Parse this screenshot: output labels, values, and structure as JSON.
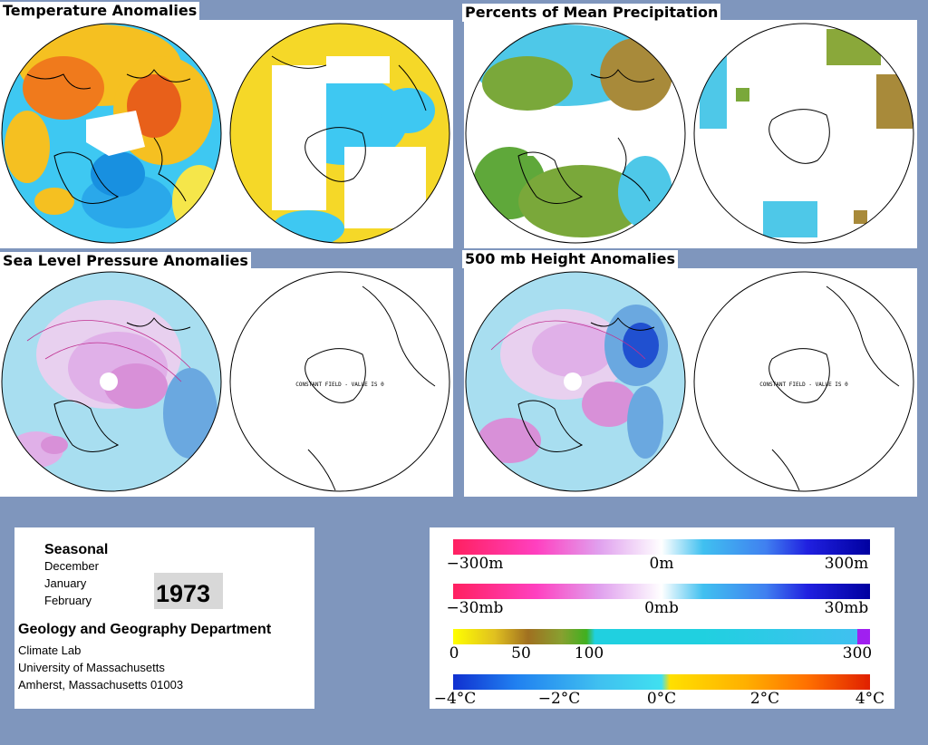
{
  "panels": {
    "temperature": {
      "title": "Temperature Anomalies"
    },
    "precipitation": {
      "title": "Percents of Mean Precipitation"
    },
    "slp": {
      "title": "Sea Level Pressure Anomalies",
      "south_note": "CONSTANT FIELD - VALUE IS 0"
    },
    "height500": {
      "title": "500 mb Height Anomalies",
      "south_note": "CONSTANT FIELD - VALUE IS 0"
    }
  },
  "info": {
    "season_label": "Seasonal",
    "months": [
      "December",
      "January",
      "February"
    ],
    "year": "1973",
    "department": "Geology and Geography Department",
    "lab": "Climate Lab",
    "university": "University of Massachusetts",
    "address": "Amherst, Massachusetts 01003"
  },
  "legend": {
    "height_bar": {
      "labels": [
        "−300m",
        "0m",
        "300m"
      ]
    },
    "slp_bar": {
      "labels": [
        "−30mb",
        "0mb",
        "30mb"
      ]
    },
    "precip_bar": {
      "labels": [
        "0",
        "50",
        "100",
        "300"
      ]
    },
    "temp_bar": {
      "labels": [
        "−4°C",
        "−2°C",
        "0°C",
        "2°C",
        "4°C"
      ]
    }
  },
  "colors": {
    "background": "#7f96bd",
    "warm_anomaly": "#f0a020",
    "cold_anomaly": "#40c0f0",
    "positive_height": "#e080d0",
    "negative_height": "#2040e0"
  }
}
